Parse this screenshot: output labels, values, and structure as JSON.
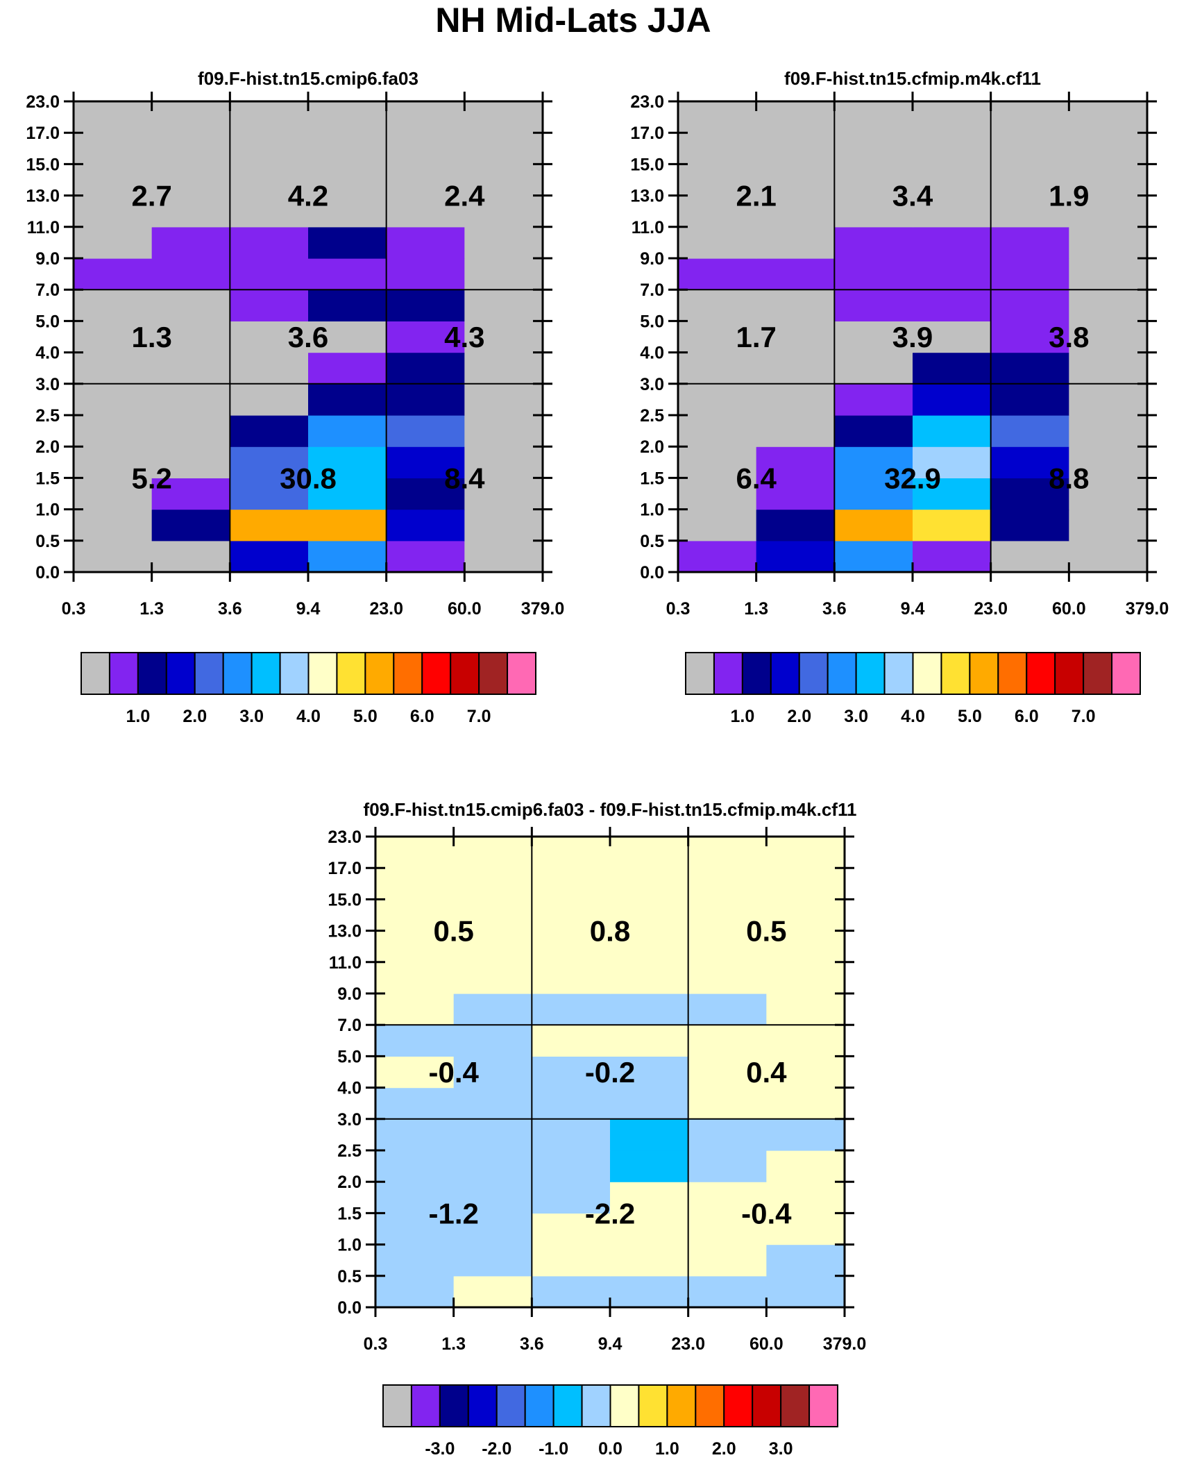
{
  "figure_title": "NH Mid-Lats JJA",
  "x_tick_labels": [
    "0.3",
    "1.3",
    "3.6",
    "9.4",
    "23.0",
    "60.0",
    "379.0"
  ],
  "y_tick_labels": [
    "0.0",
    "0.5",
    "1.0",
    "1.5",
    "2.0",
    "2.5",
    "3.0",
    "4.0",
    "5.0",
    "7.0",
    "9.0",
    "11.0",
    "13.0",
    "15.0",
    "17.0",
    "23.0"
  ],
  "colors": {
    "palette": [
      "#c0c0c0",
      "#8224f0",
      "#00008c",
      "#0000cd",
      "#4169e1",
      "#1e90ff",
      "#00bfff",
      "#a0d2ff",
      "#ffffc8",
      "#ffe132",
      "#ffaa00",
      "#ff6e00",
      "#ff0000",
      "#c80000",
      "#a02323",
      "#ff69b4"
    ],
    "background": "#ffffff",
    "grid_line": "#000000"
  },
  "chart_data": [
    {
      "type": "heatmap",
      "name": "panel-left",
      "title": "f09.F-hist.tn15.cmip6.fa03",
      "x_bins": [
        "0.3",
        "1.3",
        "3.6",
        "9.4",
        "23.0",
        "60.0",
        "379.0"
      ],
      "y_bins": [
        "0.0",
        "0.5",
        "1.0",
        "1.5",
        "2.0",
        "2.5",
        "3.0",
        "4.0",
        "5.0",
        "7.0",
        "9.0",
        "11.0",
        "13.0",
        "15.0",
        "17.0",
        "23.0"
      ],
      "cell_color_index_rows_bottom_to_top": [
        [
          0,
          0,
          3,
          5,
          1,
          0
        ],
        [
          0,
          2,
          10,
          10,
          3,
          0
        ],
        [
          0,
          1,
          4,
          6,
          2,
          0
        ],
        [
          0,
          0,
          4,
          6,
          3,
          0
        ],
        [
          0,
          0,
          2,
          5,
          4,
          0
        ],
        [
          0,
          0,
          0,
          2,
          2,
          0
        ],
        [
          0,
          0,
          0,
          1,
          2,
          0
        ],
        [
          0,
          0,
          0,
          0,
          1,
          0
        ],
        [
          0,
          0,
          1,
          2,
          2,
          0
        ],
        [
          1,
          1,
          1,
          1,
          1,
          0
        ],
        [
          0,
          1,
          1,
          2,
          1,
          0
        ],
        [
          0,
          0,
          0,
          0,
          0,
          0
        ],
        [
          0,
          0,
          0,
          0,
          0,
          0
        ],
        [
          0,
          0,
          0,
          0,
          0,
          0
        ],
        [
          0,
          0,
          0,
          0,
          0,
          0
        ]
      ],
      "region_totals": [
        {
          "value": "2.7",
          "group": "high",
          "column": "left"
        },
        {
          "value": "4.2",
          "group": "high",
          "column": "middle"
        },
        {
          "value": "2.4",
          "group": "high",
          "column": "right"
        },
        {
          "value": "1.3",
          "group": "mid",
          "column": "left"
        },
        {
          "value": "3.6",
          "group": "mid",
          "column": "middle"
        },
        {
          "value": "4.3",
          "group": "mid",
          "column": "right"
        },
        {
          "value": "5.2",
          "group": "low",
          "column": "left"
        },
        {
          "value": "30.8",
          "group": "low",
          "column": "middle"
        },
        {
          "value": "8.4",
          "group": "low",
          "column": "right"
        }
      ],
      "colorbar": {
        "tick_labels": [
          "1.0",
          "2.0",
          "3.0",
          "4.0",
          "5.0",
          "6.0",
          "7.0"
        ]
      }
    },
    {
      "type": "heatmap",
      "name": "panel-right",
      "title": "f09.F-hist.tn15.cfmip.m4k.cf11",
      "x_bins": [
        "0.3",
        "1.3",
        "3.6",
        "9.4",
        "23.0",
        "60.0",
        "379.0"
      ],
      "y_bins": [
        "0.0",
        "0.5",
        "1.0",
        "1.5",
        "2.0",
        "2.5",
        "3.0",
        "4.0",
        "5.0",
        "7.0",
        "9.0",
        "11.0",
        "13.0",
        "15.0",
        "17.0",
        "23.0"
      ],
      "cell_color_index_rows_bottom_to_top": [
        [
          1,
          3,
          5,
          1,
          0,
          0
        ],
        [
          0,
          2,
          10,
          9,
          2,
          0
        ],
        [
          0,
          1,
          5,
          6,
          2,
          0
        ],
        [
          0,
          1,
          5,
          7,
          3,
          0
        ],
        [
          0,
          0,
          2,
          6,
          4,
          0
        ],
        [
          0,
          0,
          1,
          3,
          2,
          0
        ],
        [
          0,
          0,
          0,
          2,
          2,
          0
        ],
        [
          0,
          0,
          0,
          0,
          1,
          0
        ],
        [
          0,
          0,
          1,
          1,
          1,
          0
        ],
        [
          1,
          1,
          1,
          1,
          1,
          0
        ],
        [
          0,
          0,
          1,
          1,
          1,
          0
        ],
        [
          0,
          0,
          0,
          0,
          0,
          0
        ],
        [
          0,
          0,
          0,
          0,
          0,
          0
        ],
        [
          0,
          0,
          0,
          0,
          0,
          0
        ],
        [
          0,
          0,
          0,
          0,
          0,
          0
        ]
      ],
      "region_totals": [
        {
          "value": "2.1",
          "group": "high",
          "column": "left"
        },
        {
          "value": "3.4",
          "group": "high",
          "column": "middle"
        },
        {
          "value": "1.9",
          "group": "high",
          "column": "right"
        },
        {
          "value": "1.7",
          "group": "mid",
          "column": "left"
        },
        {
          "value": "3.9",
          "group": "mid",
          "column": "middle"
        },
        {
          "value": "3.8",
          "group": "mid",
          "column": "right"
        },
        {
          "value": "6.4",
          "group": "low",
          "column": "left"
        },
        {
          "value": "32.9",
          "group": "low",
          "column": "middle"
        },
        {
          "value": "8.8",
          "group": "low",
          "column": "right"
        }
      ],
      "colorbar": {
        "tick_labels": [
          "1.0",
          "2.0",
          "3.0",
          "4.0",
          "5.0",
          "6.0",
          "7.0"
        ]
      }
    },
    {
      "type": "heatmap",
      "name": "panel-difference",
      "title": "f09.F-hist.tn15.cmip6.fa03 - f09.F-hist.tn15.cfmip.m4k.cf11",
      "x_bins": [
        "0.3",
        "1.3",
        "3.6",
        "9.4",
        "23.0",
        "60.0",
        "379.0"
      ],
      "y_bins": [
        "0.0",
        "0.5",
        "1.0",
        "1.5",
        "2.0",
        "2.5",
        "3.0",
        "4.0",
        "5.0",
        "7.0",
        "9.0",
        "11.0",
        "13.0",
        "15.0",
        "17.0",
        "23.0"
      ],
      "cell_color_index_rows_bottom_to_top": [
        [
          7,
          8,
          7,
          7,
          7,
          7
        ],
        [
          7,
          7,
          8,
          8,
          8,
          7
        ],
        [
          7,
          7,
          8,
          8,
          8,
          8
        ],
        [
          7,
          7,
          7,
          8,
          8,
          8
        ],
        [
          7,
          7,
          7,
          6,
          7,
          8
        ],
        [
          7,
          7,
          7,
          6,
          7,
          7
        ],
        [
          7,
          7,
          7,
          7,
          8,
          8
        ],
        [
          8,
          7,
          7,
          7,
          8,
          8
        ],
        [
          7,
          7,
          8,
          8,
          8,
          8
        ],
        [
          8,
          7,
          7,
          7,
          7,
          8
        ],
        [
          8,
          8,
          8,
          8,
          8,
          8
        ],
        [
          8,
          8,
          8,
          8,
          8,
          8
        ],
        [
          8,
          8,
          8,
          8,
          8,
          8
        ],
        [
          8,
          8,
          8,
          8,
          8,
          8
        ],
        [
          8,
          8,
          8,
          8,
          8,
          8
        ]
      ],
      "region_totals": [
        {
          "value": "0.5",
          "group": "high",
          "column": "left"
        },
        {
          "value": "0.8",
          "group": "high",
          "column": "middle"
        },
        {
          "value": "0.5",
          "group": "high",
          "column": "right"
        },
        {
          "value": "-0.4",
          "group": "mid",
          "column": "left"
        },
        {
          "value": "-0.2",
          "group": "mid",
          "column": "middle"
        },
        {
          "value": "0.4",
          "group": "mid",
          "column": "right"
        },
        {
          "value": "-1.2",
          "group": "low",
          "column": "left"
        },
        {
          "value": "-2.2",
          "group": "low",
          "column": "middle"
        },
        {
          "value": "-0.4",
          "group": "low",
          "column": "right"
        }
      ],
      "colorbar": {
        "tick_labels": [
          "-3.0",
          "-2.0",
          "-1.0",
          "0.0",
          "1.0",
          "2.0",
          "3.0"
        ]
      }
    }
  ]
}
